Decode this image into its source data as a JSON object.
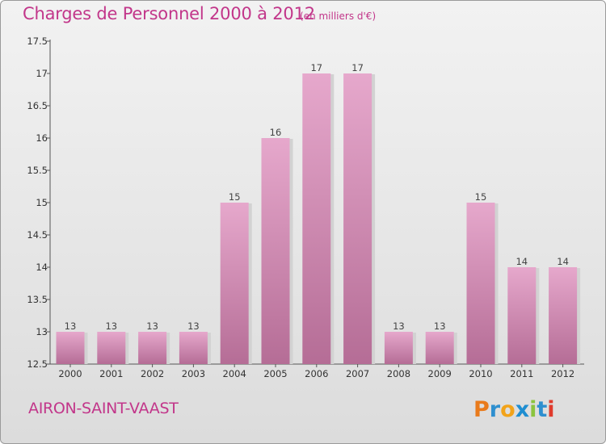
{
  "header": {
    "title": "Charges de Personnel 2000 à 2012",
    "unit": "(en milliers d'€)"
  },
  "footer": {
    "place": "AIRON-SAINT-VAAST",
    "logo_text": "Proxiti"
  },
  "colors": {
    "title": "#c2368a",
    "bar_light": "#e6a8cc",
    "bar_dark": "#b56d96",
    "bar_shadow": "#d2d2d2",
    "logo_letters": [
      "#e97a1b",
      "#2e8fcf",
      "#f2a31a",
      "#1f8ed1",
      "#8bc43f",
      "#2e8fcf",
      "#e03b2d"
    ]
  },
  "chart_data": {
    "type": "bar",
    "title": "Charges de Personnel 2000 à 2012",
    "subtitle": "(en milliers d'€)",
    "categories": [
      "2000",
      "2001",
      "2002",
      "2003",
      "2004",
      "2005",
      "2006",
      "2007",
      "2008",
      "2009",
      "2010",
      "2011",
      "2012"
    ],
    "values": [
      13,
      13,
      13,
      13,
      15,
      16,
      17,
      17,
      13,
      13,
      15,
      14,
      14
    ],
    "value_labels": [
      "13",
      "13",
      "13",
      "13",
      "15",
      "16",
      "17",
      "17",
      "13",
      "13",
      "15",
      "14",
      "14"
    ],
    "ylim": [
      12.5,
      17.5
    ],
    "yticks": [
      "12.5",
      "13",
      "13.5",
      "14",
      "14.5",
      "15",
      "15.5",
      "16",
      "16.5",
      "17",
      "17.5"
    ],
    "xlabel": "",
    "ylabel": "",
    "grid": false,
    "legend": "none"
  }
}
